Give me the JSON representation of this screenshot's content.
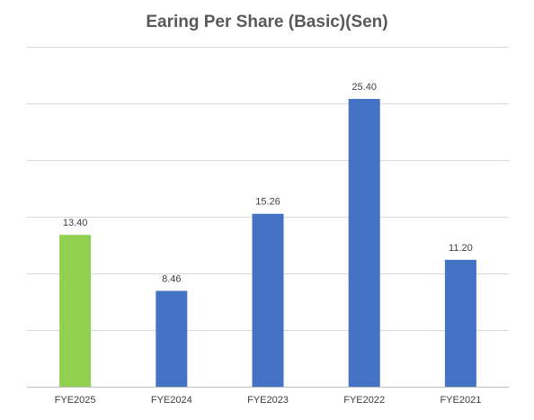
{
  "chart_data": {
    "type": "bar",
    "title": "Earing Per Share (Basic)(Sen)",
    "categories": [
      "FYE2025",
      "FYE2024",
      "FYE2023",
      "FYE2022",
      "FYE2021"
    ],
    "values": [
      13.4,
      8.46,
      15.26,
      25.4,
      11.2
    ],
    "value_labels": [
      "13.40",
      "8.46",
      "15.26",
      "25.40",
      "11.20"
    ],
    "bar_colors": [
      "#92d050",
      "#4472c4",
      "#4472c4",
      "#4472c4",
      "#4472c4"
    ],
    "ylim": [
      0,
      30
    ],
    "y_gridlines": [
      0,
      5,
      10,
      15,
      20,
      25,
      30
    ],
    "grid": true,
    "legend": "none",
    "xlabel": "",
    "ylabel": ""
  }
}
